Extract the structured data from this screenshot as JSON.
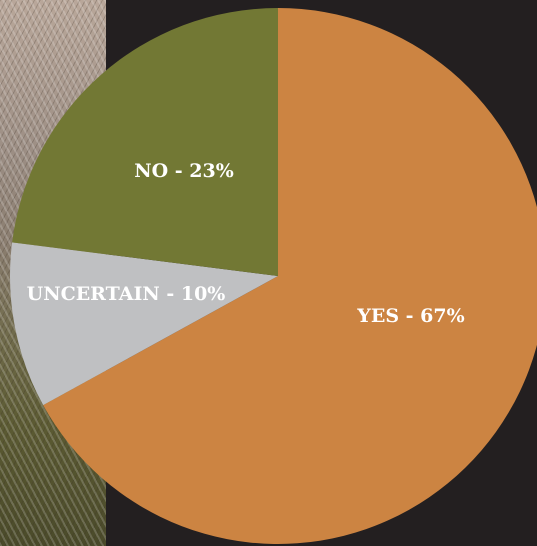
{
  "chart_data": {
    "type": "pie",
    "title": "",
    "slices": [
      {
        "label": "YES - 67%",
        "value": 67,
        "color": "#cc8442"
      },
      {
        "label": "UNCERTAIN - 10%",
        "value": 10,
        "color": "#bfc0c2"
      },
      {
        "label": "NO - 23%",
        "value": 23,
        "color": "#727834"
      }
    ],
    "start": "top",
    "direction": "clockwise",
    "background_color": "#231f20"
  }
}
